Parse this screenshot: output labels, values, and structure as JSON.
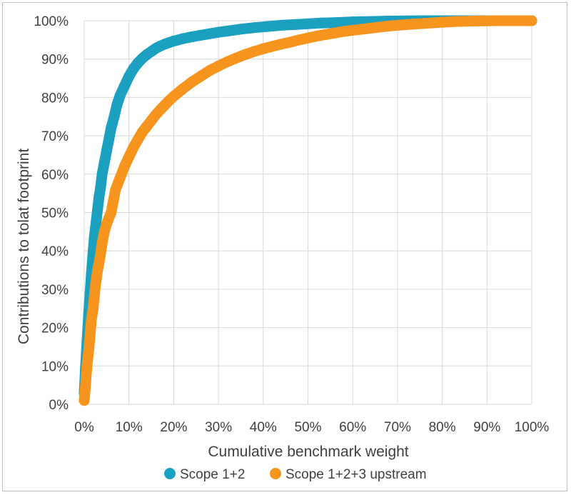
{
  "chart_data": {
    "type": "scatter",
    "title": "",
    "xlabel": "Cumulative benchmark weight",
    "ylabel": "Contributions to tolat footprint",
    "xlim": [
      0,
      100
    ],
    "ylim": [
      0,
      100
    ],
    "x_ticks": [
      "0%",
      "10%",
      "20%",
      "30%",
      "40%",
      "50%",
      "60%",
      "70%",
      "80%",
      "90%",
      "100%"
    ],
    "y_ticks": [
      "0%",
      "10%",
      "20%",
      "30%",
      "40%",
      "50%",
      "60%",
      "70%",
      "80%",
      "90%",
      "100%"
    ],
    "grid": true,
    "legend_position": "bottom",
    "series": [
      {
        "name": "Scope 1+2",
        "color": "#1ba1bf",
        "points": [
          [
            0,
            3
          ],
          [
            0.3,
            10
          ],
          [
            0.6,
            16
          ],
          [
            1,
            24
          ],
          [
            1.3,
            29
          ],
          [
            1.6,
            34
          ],
          [
            2,
            40
          ],
          [
            2.3,
            44
          ],
          [
            3,
            51
          ],
          [
            3.3,
            54
          ],
          [
            3.7,
            57
          ],
          [
            4,
            60
          ],
          [
            4.5,
            63
          ],
          [
            5,
            66
          ],
          [
            5.5,
            69
          ],
          [
            6,
            72
          ],
          [
            6.7,
            75
          ],
          [
            7.3,
            78
          ],
          [
            8,
            80.5
          ],
          [
            9,
            83
          ],
          [
            10,
            85.5
          ],
          [
            11,
            87.5
          ],
          [
            12,
            89
          ],
          [
            13,
            90.2
          ],
          [
            14,
            91.2
          ],
          [
            15,
            92
          ],
          [
            16,
            92.8
          ],
          [
            17,
            93.4
          ],
          [
            18,
            93.9
          ],
          [
            19,
            94.3
          ],
          [
            20,
            94.7
          ],
          [
            22,
            95.3
          ],
          [
            24,
            95.8
          ],
          [
            26,
            96.2
          ],
          [
            28,
            96.6
          ],
          [
            30,
            97
          ],
          [
            32,
            97.3
          ],
          [
            35,
            97.8
          ],
          [
            38,
            98.2
          ],
          [
            41,
            98.5
          ],
          [
            44,
            98.8
          ],
          [
            47,
            99
          ],
          [
            50,
            99.2
          ],
          [
            53,
            99.4
          ],
          [
            56,
            99.5
          ],
          [
            60,
            99.7
          ],
          [
            64,
            99.8
          ],
          [
            68,
            99.9
          ],
          [
            72,
            99.95
          ],
          [
            76,
            100
          ],
          [
            81,
            100
          ],
          [
            87,
            100
          ],
          [
            93,
            100
          ],
          [
            100,
            100
          ]
        ]
      },
      {
        "name": "Scope 1+2+3 upstream",
        "color": "#f7941d",
        "points": [
          [
            0,
            1
          ],
          [
            0.3,
            5
          ],
          [
            0.6,
            10
          ],
          [
            1,
            14
          ],
          [
            1.3,
            18
          ],
          [
            1.6,
            22
          ],
          [
            2,
            25
          ],
          [
            2.5,
            31
          ],
          [
            3,
            35
          ],
          [
            3.5,
            38
          ],
          [
            4,
            42
          ],
          [
            4.5,
            45
          ],
          [
            5,
            47
          ],
          [
            6,
            50
          ],
          [
            6.5,
            53
          ],
          [
            7,
            56
          ],
          [
            8,
            59
          ],
          [
            9,
            62
          ],
          [
            10,
            64.5
          ],
          [
            11,
            67
          ],
          [
            12,
            69
          ],
          [
            13,
            71
          ],
          [
            14,
            72.5
          ],
          [
            15,
            74
          ],
          [
            16,
            75.5
          ],
          [
            17,
            76.8
          ],
          [
            18,
            78
          ],
          [
            19,
            79.2
          ],
          [
            20,
            80.3
          ],
          [
            22,
            82.2
          ],
          [
            24,
            84
          ],
          [
            26,
            85.5
          ],
          [
            28,
            87
          ],
          [
            30,
            88.2
          ],
          [
            32,
            89.3
          ],
          [
            34,
            90.3
          ],
          [
            36,
            91.2
          ],
          [
            38,
            92
          ],
          [
            40,
            92.7
          ],
          [
            42,
            93.3
          ],
          [
            44,
            93.9
          ],
          [
            46,
            94.4
          ],
          [
            48,
            95
          ],
          [
            50,
            95.5
          ],
          [
            52,
            96
          ],
          [
            54,
            96.4
          ],
          [
            56,
            96.8
          ],
          [
            58,
            97.2
          ],
          [
            60,
            97.5
          ],
          [
            65,
            98.2
          ],
          [
            68,
            98.6
          ],
          [
            72,
            99
          ],
          [
            76,
            99.3
          ],
          [
            80,
            99.6
          ],
          [
            83,
            99.8
          ],
          [
            87,
            99.9
          ],
          [
            92,
            100
          ],
          [
            96,
            100
          ],
          [
            100,
            100
          ]
        ]
      }
    ]
  }
}
